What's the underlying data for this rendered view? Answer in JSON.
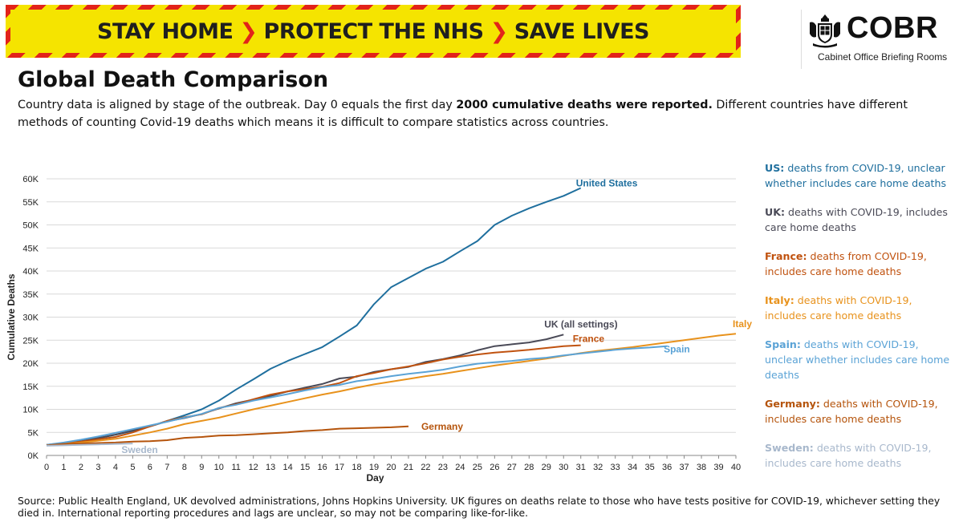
{
  "banner": {
    "part1": "STAY HOME",
    "part2": "PROTECT THE NHS",
    "part3": "SAVE LIVES"
  },
  "logo": {
    "word": "COBR",
    "subtitle": "Cabinet Office Briefing Rooms"
  },
  "title": "Global Death Comparison",
  "description": {
    "before": "Country data is aligned by stage of the outbreak. Day 0 equals the first day ",
    "bold": "2000 cumulative deaths were reported.",
    "after": " Different countries have different methods of counting Covid-19 deaths which means it is difficult to compare statistics across countries."
  },
  "legend": [
    {
      "country": "US:",
      "text": " deaths from COVID-19, unclear whether includes care home deaths",
      "color": "#1f6f9e"
    },
    {
      "country": "UK:",
      "text": " deaths with COVID-19, includes care home deaths",
      "color": "#4a4a57"
    },
    {
      "country": "France:",
      "text": " deaths from COVID-19, includes care home deaths",
      "color": "#c0520f"
    },
    {
      "country": "Italy:",
      "text": " deaths with COVID-19, includes care home deaths",
      "color": "#e8921c"
    },
    {
      "country": "Spain:",
      "text": " deaths with COVID-19, unclear whether includes care home deaths",
      "color": "#5ba3d6"
    },
    {
      "country": "Germany:",
      "text": " deaths with COVID-19, includes care home deaths",
      "color": "#b5540c"
    },
    {
      "country": "Sweden:",
      "text": " deaths with COVID-19, includes care home deaths",
      "color": "#a8b8cc"
    }
  ],
  "source": "Source: Public Health England, UK devolved administrations, Johns Hopkins University. UK figures on deaths relate to those who have tests positive for COVID-19, whichever setting they died in. International reporting procedures and lags are unclear, so may not be comparing like-for-like.",
  "chart_data": {
    "type": "line",
    "xlabel": "Day",
    "ylabel": "Cumulative Deaths",
    "xlim": [
      0,
      40
    ],
    "ylim": [
      0,
      60000
    ],
    "x_ticks": [
      "0",
      "1",
      "2",
      "3",
      "4",
      "5",
      "6",
      "7",
      "8",
      "9",
      "10",
      "11",
      "12",
      "13",
      "14",
      "15",
      "16",
      "17",
      "18",
      "19",
      "20",
      "21",
      "22",
      "23",
      "24",
      "25",
      "26",
      "27",
      "28",
      "29",
      "30",
      "31",
      "32",
      "33",
      "34",
      "35",
      "36",
      "37",
      "38",
      "39",
      "40"
    ],
    "y_ticks": [
      {
        "value": 0,
        "label": "0K"
      },
      {
        "value": 5000,
        "label": "5K"
      },
      {
        "value": 10000,
        "label": "10K"
      },
      {
        "value": 15000,
        "label": "15K"
      },
      {
        "value": 20000,
        "label": "20K"
      },
      {
        "value": 25000,
        "label": "25K"
      },
      {
        "value": 30000,
        "label": "30K"
      },
      {
        "value": 35000,
        "label": "35K"
      },
      {
        "value": 40000,
        "label": "40K"
      },
      {
        "value": 45000,
        "label": "45K"
      },
      {
        "value": 50000,
        "label": "50K"
      },
      {
        "value": 55000,
        "label": "55K"
      },
      {
        "value": 60000,
        "label": "60K"
      }
    ],
    "grid": "horizontal",
    "series": [
      {
        "name": "United States",
        "color": "#1f6f9e",
        "x": [
          0,
          1,
          2,
          3,
          4,
          5,
          6,
          7,
          8,
          9,
          10,
          11,
          12,
          13,
          14,
          15,
          16,
          17,
          18,
          19,
          20,
          21,
          22,
          23,
          24,
          25,
          26,
          27,
          28,
          29,
          30,
          31
        ],
        "y": [
          2200,
          2500,
          3000,
          3700,
          4500,
          5300,
          6300,
          7500,
          8700,
          10000,
          11900,
          14300,
          16500,
          18800,
          20500,
          22000,
          23500,
          25800,
          28200,
          32800,
          36500,
          38500,
          40500,
          42000,
          44300,
          46500,
          50000,
          52000,
          53600,
          55000,
          56300,
          58000
        ]
      },
      {
        "name": "UK (all settings)",
        "color": "#4a4a57",
        "x": [
          0,
          1,
          2,
          3,
          4,
          5,
          6,
          7,
          8,
          9,
          10,
          11,
          12,
          13,
          14,
          15,
          16,
          17,
          18,
          19,
          20,
          21,
          22,
          23,
          24,
          25,
          26,
          27,
          28,
          29,
          30
        ],
        "y": [
          2300,
          2700,
          3100,
          3800,
          4500,
          5400,
          6300,
          7400,
          8100,
          9000,
          10200,
          11300,
          12100,
          12900,
          13900,
          14700,
          15500,
          16700,
          17100,
          18100,
          18700,
          19200,
          20300,
          20900,
          21700,
          22800,
          23700,
          24100,
          24500,
          25200,
          26200
        ]
      },
      {
        "name": "France",
        "color": "#c0520f",
        "x": [
          0,
          1,
          2,
          3,
          4,
          5,
          6,
          7,
          8,
          9,
          10,
          11,
          12,
          13,
          14,
          15,
          16,
          17,
          18,
          19,
          20,
          21,
          22,
          23,
          24,
          25,
          26,
          27,
          28,
          29,
          30,
          31
        ],
        "y": [
          2300,
          2600,
          3000,
          3500,
          4000,
          5000,
          6300,
          7500,
          8300,
          8900,
          10300,
          11100,
          12200,
          13200,
          13900,
          14400,
          14900,
          15700,
          17200,
          17900,
          18700,
          19300,
          20000,
          20800,
          21400,
          21900,
          22300,
          22600,
          22900,
          23300,
          23700,
          23900
        ]
      },
      {
        "name": "Italy",
        "color": "#e8921c",
        "x": [
          0,
          1,
          2,
          3,
          4,
          5,
          6,
          7,
          8,
          9,
          10,
          11,
          12,
          13,
          14,
          15,
          16,
          17,
          18,
          19,
          20,
          21,
          22,
          23,
          24,
          25,
          26,
          27,
          28,
          29,
          30,
          31,
          32,
          33,
          34,
          35,
          36,
          37,
          38,
          39,
          40
        ],
        "y": [
          2200,
          2500,
          2800,
          3200,
          3600,
          4300,
          5000,
          5800,
          6800,
          7500,
          8200,
          9100,
          10000,
          10800,
          11600,
          12400,
          13200,
          13900,
          14700,
          15400,
          16000,
          16600,
          17200,
          17700,
          18300,
          18900,
          19500,
          20000,
          20500,
          21000,
          21600,
          22200,
          22700,
          23100,
          23500,
          24000,
          24500,
          25000,
          25500,
          26000,
          26400
        ]
      },
      {
        "name": "Spain",
        "color": "#5ba3d6",
        "x": [
          0,
          1,
          2,
          3,
          4,
          5,
          6,
          7,
          8,
          9,
          10,
          11,
          12,
          13,
          14,
          15,
          16,
          17,
          18,
          19,
          20,
          21,
          22,
          23,
          24,
          25,
          26,
          27,
          28,
          29,
          30,
          31,
          32,
          33,
          34,
          35,
          36
        ],
        "y": [
          2300,
          2800,
          3400,
          4100,
          4900,
          5700,
          6500,
          7300,
          8200,
          9000,
          10300,
          11000,
          11900,
          12600,
          13300,
          14100,
          14800,
          15300,
          16100,
          16600,
          17200,
          17700,
          18100,
          18600,
          19300,
          19900,
          20200,
          20500,
          20900,
          21200,
          21700,
          22100,
          22500,
          22900,
          23200,
          23400,
          23700
        ]
      },
      {
        "name": "Germany",
        "color": "#b5540c",
        "x": [
          0,
          1,
          2,
          3,
          4,
          5,
          6,
          7,
          8,
          9,
          10,
          11,
          12,
          13,
          14,
          15,
          16,
          17,
          18,
          19,
          20,
          21
        ],
        "y": [
          2200,
          2500,
          2600,
          2700,
          2800,
          3000,
          3100,
          3300,
          3800,
          4000,
          4300,
          4400,
          4600,
          4800,
          5000,
          5300,
          5500,
          5800,
          5900,
          6000,
          6100,
          6300
        ]
      },
      {
        "name": "Sweden",
        "color": "#a8b8cc",
        "x": [
          0,
          1,
          2,
          3,
          4,
          5
        ],
        "y": [
          2100,
          2200,
          2300,
          2400,
          2500,
          2600
        ]
      }
    ],
    "labels": [
      {
        "series": "United States",
        "text": "United States",
        "at_x": 31,
        "at_y": 58000
      },
      {
        "series": "UK (all settings)",
        "text": "UK (all settings)",
        "at_x": 30,
        "at_y": 26200
      },
      {
        "series": "France",
        "text": "France",
        "at_x": 31,
        "at_y": 23900
      },
      {
        "series": "Italy",
        "text": "Italy",
        "at_x": 40,
        "at_y": 26400
      },
      {
        "series": "Spain",
        "text": "Spain",
        "at_x": 36,
        "at_y": 23700
      },
      {
        "series": "Germany",
        "text": "Germany",
        "at_x": 21,
        "at_y": 6300
      },
      {
        "series": "Sweden",
        "text": "Sweden",
        "at_x": 5,
        "at_y": 2600
      }
    ]
  }
}
